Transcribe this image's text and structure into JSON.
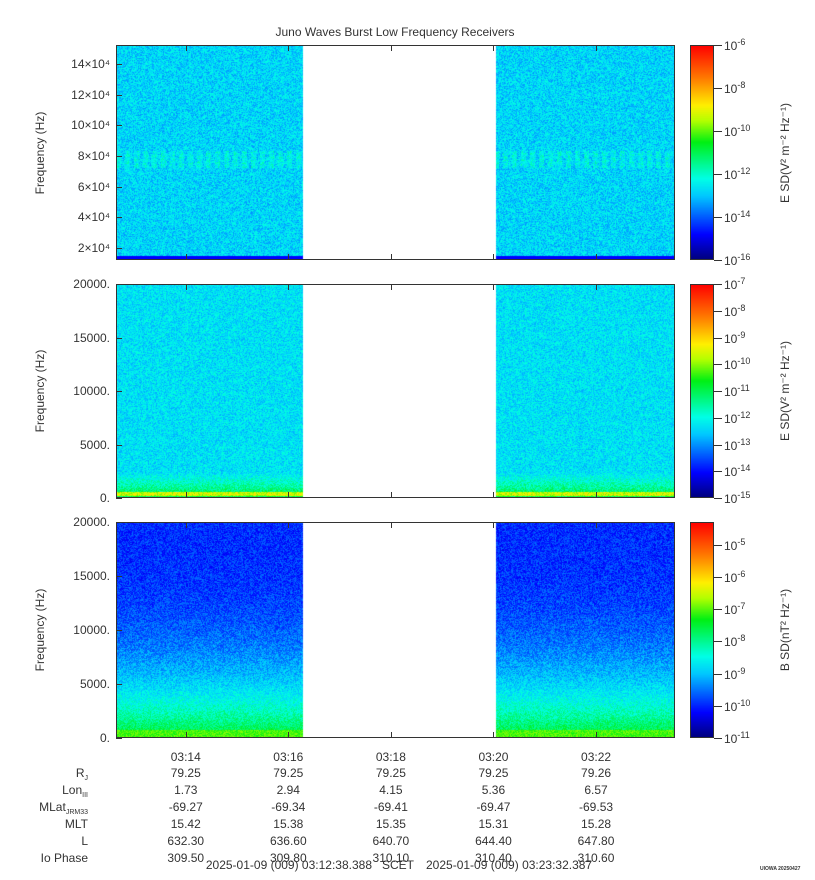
{
  "title": "Juno Waves Burst Low Frequency Receivers",
  "chart_data": [
    {
      "type": "heatmap",
      "ylabel": "Frequency (Hz)",
      "ylim": [
        12000,
        152500
      ],
      "yscale": "linear",
      "yticks": [
        {
          "v": 20000,
          "label": "2×10⁴"
        },
        {
          "v": 40000,
          "label": "4×10⁴"
        },
        {
          "v": 60000,
          "label": "6×10⁴"
        },
        {
          "v": 80000,
          "label": "8×10⁴"
        },
        {
          "v": 100000,
          "label": "10×10⁴"
        },
        {
          "v": 120000,
          "label": "12×10⁴"
        },
        {
          "v": 140000,
          "label": "14×10⁴"
        }
      ],
      "colorbar": {
        "label": "E SD(V² m⁻² Hz⁻¹)",
        "range_exp": [
          -16,
          -6
        ],
        "tick_exps": [
          -16,
          -14,
          -12,
          -10,
          -8,
          -6
        ]
      },
      "style": "e1"
    },
    {
      "type": "heatmap",
      "ylabel": "Frequency (Hz)",
      "ylim": [
        0,
        20000
      ],
      "yscale": "linear",
      "yticks": [
        {
          "v": 0,
          "label": "0."
        },
        {
          "v": 5000,
          "label": "5000."
        },
        {
          "v": 10000,
          "label": "10000."
        },
        {
          "v": 15000,
          "label": "15000."
        },
        {
          "v": 20000,
          "label": "20000."
        }
      ],
      "colorbar": {
        "label": "E SD(V² m⁻² Hz⁻¹)",
        "range_exp": [
          -15,
          -7
        ],
        "tick_exps": [
          -15,
          -14,
          -13,
          -12,
          -11,
          -10,
          -9,
          -8,
          -7
        ]
      },
      "style": "e2"
    },
    {
      "type": "heatmap",
      "ylabel": "Frequency (Hz)",
      "ylim": [
        0,
        20000
      ],
      "yscale": "linear",
      "yticks": [
        {
          "v": 0,
          "label": "0."
        },
        {
          "v": 5000,
          "label": "5000."
        },
        {
          "v": 10000,
          "label": "10000."
        },
        {
          "v": 15000,
          "label": "15000."
        },
        {
          "v": 20000,
          "label": "20000."
        }
      ],
      "colorbar": {
        "label": "B SD(nT² Hz⁻¹)",
        "range_exp": [
          -11,
          -4.3
        ],
        "tick_exps": [
          -11,
          -10,
          -9,
          -8,
          -7,
          -6,
          -5
        ]
      },
      "style": "b"
    }
  ],
  "time_axis": {
    "start_sec": 45158.388,
    "end_sec": 45812.387,
    "data_gap_sec": [
      45376,
      45602
    ],
    "ticks": [
      "03:14",
      "03:16",
      "03:18",
      "03:20",
      "03:22"
    ],
    "tick_secs": [
      45240,
      45360,
      45480,
      45600,
      45720
    ]
  },
  "ephemeris": [
    {
      "label": "R",
      "sub": "J",
      "values": [
        "79.25",
        "79.25",
        "79.25",
        "79.25",
        "79.26"
      ]
    },
    {
      "label": "Lon",
      "sub": "III",
      "values": [
        "1.73",
        "2.94",
        "4.15",
        "5.36",
        "6.57"
      ]
    },
    {
      "label": "MLat",
      "sub": "JRM33",
      "values": [
        "-69.27",
        "-69.34",
        "-69.41",
        "-69.47",
        "-69.53"
      ]
    },
    {
      "label": "MLT",
      "sub": "",
      "values": [
        "15.42",
        "15.38",
        "15.35",
        "15.31",
        "15.28"
      ]
    },
    {
      "label": "L",
      "sub": "",
      "values": [
        "632.30",
        "636.60",
        "640.70",
        "644.40",
        "647.80"
      ]
    },
    {
      "label": "Io Phase",
      "sub": "",
      "values": [
        "309.50",
        "309.80",
        "310.10",
        "310.40",
        "310.60"
      ]
    }
  ],
  "footer": {
    "start": "2025-01-09 (009) 03:12:38.388",
    "scet": "SCET",
    "end": "2025-01-09 (009) 03:23:32.387",
    "credit": "UIOWA 20250427"
  }
}
